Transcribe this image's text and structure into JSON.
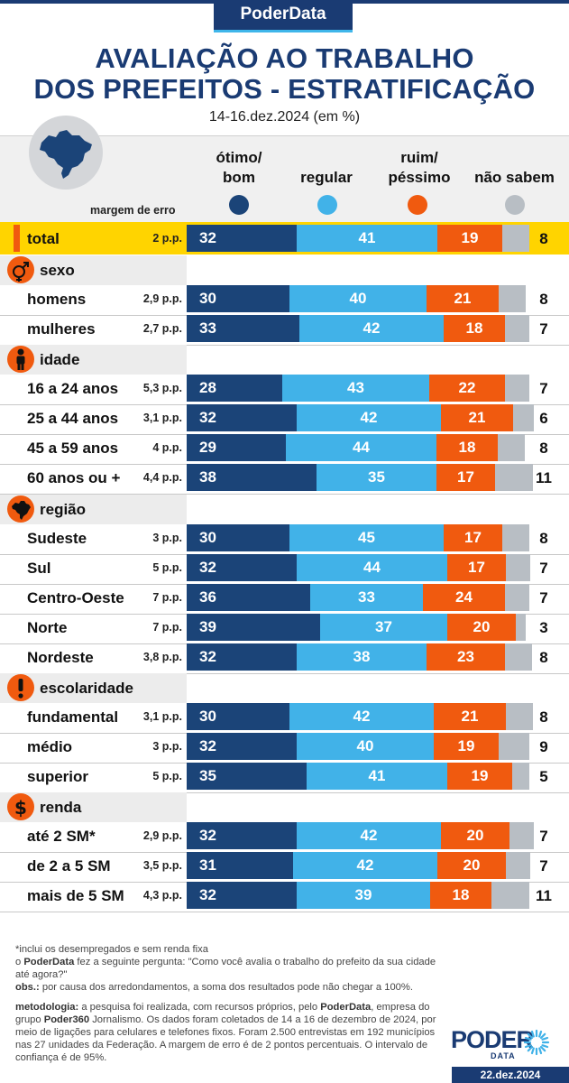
{
  "brand": "PoderData",
  "title_line1": "AVALIAÇÃO AO TRABALHO",
  "title_line2": "DOS PREFEITOS - ESTRATIFICAÇÃO",
  "subtitle": "14-16.dez.2024 (em %)",
  "margin_header": "margem de erro",
  "colors": {
    "otimo_bom": "#1b4478",
    "regular": "#41b2e8",
    "ruim_pessimo": "#f05a0f",
    "nao_sabem": "#b8bec4",
    "brand": "#1a3b73",
    "highlight": "#ffd400"
  },
  "legend": [
    {
      "line1": "ótimo/",
      "line2": "bom"
    },
    {
      "line1": "",
      "line2": "regular"
    },
    {
      "line1": "ruim/",
      "line2": "péssimo"
    },
    {
      "line1": "",
      "line2": "não sabem"
    }
  ],
  "chart_data": {
    "type": "bar",
    "stacked": true,
    "orientation": "horizontal",
    "title": "AVALIAÇÃO AO TRABALHO DOS PREFEITOS - ESTRATIFICAÇÃO",
    "subtitle": "14-16.dez.2024 (em %)",
    "series_names": [
      "ótimo/bom",
      "regular",
      "ruim/péssimo",
      "não sabem"
    ],
    "xlim": [
      0,
      100
    ],
    "sections": [
      {
        "name": null,
        "icon": null,
        "rows": [
          {
            "label": "total",
            "margin": "2 p.p.",
            "values": [
              32,
              41,
              19,
              8
            ],
            "highlight": true
          }
        ]
      },
      {
        "name": "sexo",
        "icon": "gender-icon",
        "rows": [
          {
            "label": "homens",
            "margin": "2,9 p.p.",
            "values": [
              30,
              40,
              21,
              8
            ]
          },
          {
            "label": "mulheres",
            "margin": "2,7 p.p.",
            "values": [
              33,
              42,
              18,
              7
            ]
          }
        ]
      },
      {
        "name": "idade",
        "icon": "person-icon",
        "rows": [
          {
            "label": "16 a 24 anos",
            "margin": "5,3 p.p.",
            "values": [
              28,
              43,
              22,
              7
            ]
          },
          {
            "label": "25 a 44 anos",
            "margin": "3,1 p.p.",
            "values": [
              32,
              42,
              21,
              6
            ]
          },
          {
            "label": "45 a 59 anos",
            "margin": "4 p.p.",
            "values": [
              29,
              44,
              18,
              8
            ]
          },
          {
            "label": "60 anos ou +",
            "margin": "4,4 p.p.",
            "values": [
              38,
              35,
              17,
              11
            ]
          }
        ]
      },
      {
        "name": "região",
        "icon": "brazil-map-icon",
        "rows": [
          {
            "label": "Sudeste",
            "margin": "3 p.p.",
            "values": [
              30,
              45,
              17,
              8
            ]
          },
          {
            "label": "Sul",
            "margin": "5 p.p.",
            "values": [
              32,
              44,
              17,
              7
            ]
          },
          {
            "label": "Centro-Oeste",
            "margin": "7 p.p.",
            "values": [
              36,
              33,
              24,
              7
            ]
          },
          {
            "label": "Norte",
            "margin": "7 p.p.",
            "values": [
              39,
              37,
              20,
              3
            ]
          },
          {
            "label": "Nordeste",
            "margin": "3,8 p.p.",
            "values": [
              32,
              38,
              23,
              8
            ]
          }
        ]
      },
      {
        "name": "escolaridade",
        "icon": "exclamation-icon",
        "rows": [
          {
            "label": "fundamental",
            "margin": "3,1 p.p.",
            "values": [
              30,
              42,
              21,
              8
            ]
          },
          {
            "label": "médio",
            "margin": "3 p.p.",
            "values": [
              32,
              40,
              19,
              9
            ]
          },
          {
            "label": "superior",
            "margin": "5 p.p.",
            "values": [
              35,
              41,
              19,
              5
            ]
          }
        ]
      },
      {
        "name": "renda",
        "icon": "dollar-icon",
        "rows": [
          {
            "label": "até 2 SM*",
            "margin": "2,9 p.p.",
            "values": [
              32,
              42,
              20,
              7
            ]
          },
          {
            "label": "de 2 a 5 SM",
            "margin": "3,5 p.p.",
            "values": [
              31,
              42,
              20,
              7
            ]
          },
          {
            "label": "mais de 5 SM",
            "margin": "4,3 p.p.",
            "values": [
              32,
              39,
              18,
              11
            ]
          }
        ]
      }
    ]
  },
  "footer": {
    "note1": "*inclui os desempregados e sem renda fixa",
    "q_prefix": "o ",
    "q_brand": "PoderData",
    "q_text": " fez a seguinte pergunta: \"Como você avalia o trabalho do prefeito da sua cidade até agora?\"",
    "obs_label": "obs.:",
    "obs_text": " por causa dos arredondamentos, a soma dos resultados pode não chegar a 100%.",
    "met_label": "metodologia:",
    "met_text1": " a pesquisa foi realizada, com recursos próprios, pelo ",
    "met_brand1": "PoderData",
    "met_text2": ", empresa do grupo ",
    "met_brand2": "Poder360",
    "met_text3": " Jornalismo. Os dados foram coletados de 14 a 16 de dezembro de 2024, por meio de ligações para celulares e telefones fixos. Foram 2.500 entrevistas em 192 municípios nas 27 unidades da Federação. A margem de erro é de 2 pontos percentuais. O intervalo de confiança é de 95%."
  },
  "logo": {
    "main": "PODER",
    "sub": "DATA"
  },
  "date": "22.dez.2024"
}
